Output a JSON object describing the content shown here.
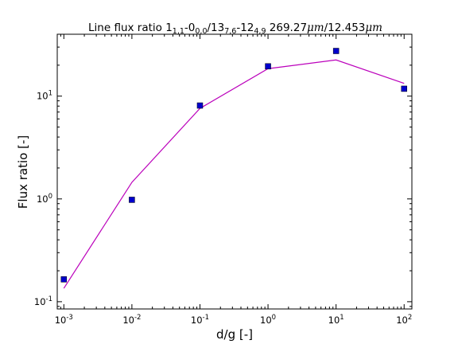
{
  "chart_data": {
    "type": "line+scatter",
    "title_parts": {
      "prefix": "Line flux ratio 1",
      "sub1": "1,1",
      "mid1": "-0",
      "sub2": "0,0",
      "mid2": "/13",
      "sub3": "7,6",
      "mid3": "-12",
      "sub4": "4,9",
      "mid4": " 269.27",
      "unit1": "μm",
      "mid5": "/12.453",
      "unit2": "μm"
    },
    "xlabel": "d/g [-]",
    "ylabel": "Flux ratio [-]",
    "x_scale": "log",
    "y_scale": "log",
    "xlim": [
      0.0008,
      130
    ],
    "ylim": [
      0.085,
      40
    ],
    "x_ticks": [
      {
        "base": "10",
        "exp": "-3",
        "value": 0.001
      },
      {
        "base": "10",
        "exp": "-2",
        "value": 0.01
      },
      {
        "base": "10",
        "exp": "-1",
        "value": 0.1
      },
      {
        "base": "10",
        "exp": "0",
        "value": 1
      },
      {
        "base": "10",
        "exp": "1",
        "value": 10
      },
      {
        "base": "10",
        "exp": "2",
        "value": 100
      }
    ],
    "y_ticks": [
      {
        "base": "10",
        "exp": "-1",
        "value": 0.1
      },
      {
        "base": "10",
        "exp": "0",
        "value": 1
      },
      {
        "base": "10",
        "exp": "1",
        "value": 10
      }
    ],
    "series": [
      {
        "kind": "scatter",
        "marker": "square",
        "color": "#0000cc",
        "x": [
          0.001,
          0.01,
          0.1,
          1,
          10,
          100
        ],
        "y": [
          0.165,
          0.98,
          8.1,
          19.5,
          27.5,
          11.8
        ]
      },
      {
        "kind": "line",
        "color": "#bb00bb",
        "x": [
          0.001,
          0.01,
          0.1,
          1,
          10,
          100
        ],
        "y": [
          0.135,
          1.45,
          7.6,
          18.5,
          22.5,
          13.3
        ]
      }
    ],
    "grid": false
  }
}
